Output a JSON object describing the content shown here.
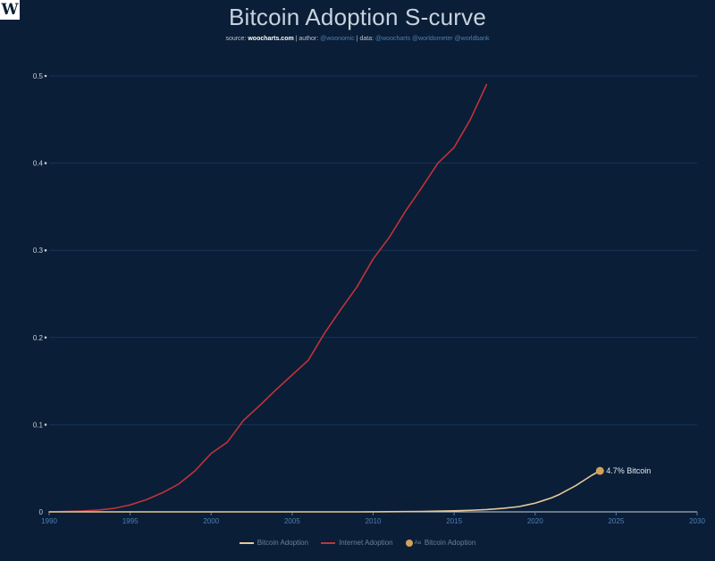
{
  "logo": {
    "text": "W"
  },
  "header": {
    "title": "Bitcoin Adoption S-curve",
    "source_prefix": "source: ",
    "source_site": "woocharts.com",
    "author_prefix": " | author: ",
    "author": "@woonomic",
    "data_prefix": " | data: ",
    "data_sources": "@woocharts @worldometer @worldbank"
  },
  "colors": {
    "background": "#0a1e37",
    "bitcoin": "#e6c89a",
    "internet": "#c0323a",
    "marker": "#d4a05a",
    "gridline": "#16335a"
  },
  "chart_data": {
    "type": "line",
    "title": "Bitcoin Adoption S-curve",
    "xlabel": "",
    "ylabel": "",
    "xlim": [
      1990,
      2030
    ],
    "ylim": [
      0,
      0.5
    ],
    "x_ticks": [
      1990,
      1995,
      2000,
      2005,
      2010,
      2015,
      2020,
      2025,
      2030
    ],
    "x_tick_labels": [
      "1990",
      "1995",
      "2000",
      "2005",
      "2010",
      "2015",
      "2020",
      "2025",
      "2030"
    ],
    "y_ticks": [
      0,
      0.1,
      0.2,
      0.3,
      0.4,
      0.5
    ],
    "y_tick_labels": [
      "0",
      "0.1",
      "0.2",
      "0.3",
      "0.4",
      "0.5"
    ],
    "grid": true,
    "legend_position": "bottom",
    "series": [
      {
        "name": "Bitcoin Adoption",
        "color": "#e6c89a",
        "x": [
          1990,
          2009,
          2010,
          2011,
          2012,
          2013,
          2014,
          2015,
          2016,
          2017,
          2018,
          2019,
          2019.5,
          2020,
          2020.5,
          2021,
          2021.5,
          2022,
          2022.5,
          2023,
          2023.5,
          2024
        ],
        "y": [
          0,
          0,
          0.0001,
          0.0002,
          0.0003,
          0.0005,
          0.0008,
          0.0012,
          0.0018,
          0.0026,
          0.004,
          0.006,
          0.008,
          0.01,
          0.013,
          0.016,
          0.02,
          0.025,
          0.03,
          0.036,
          0.042,
          0.047
        ]
      },
      {
        "name": "Internet Adoption",
        "color": "#c0323a",
        "x": [
          1990,
          1991,
          1992,
          1993,
          1994,
          1995,
          1996,
          1997,
          1998,
          1999,
          2000,
          2001,
          2002,
          2003,
          2004,
          2005,
          2006,
          2007,
          2008,
          2009,
          2010,
          2011,
          2012,
          2013,
          2014,
          2015,
          2016,
          2017
        ],
        "y": [
          0,
          0.0005,
          0.001,
          0.002,
          0.004,
          0.008,
          0.014,
          0.022,
          0.032,
          0.047,
          0.067,
          0.08,
          0.105,
          0.122,
          0.14,
          0.157,
          0.174,
          0.205,
          0.232,
          0.258,
          0.29,
          0.315,
          0.345,
          0.372,
          0.4,
          0.418,
          0.45,
          0.49
        ]
      }
    ],
    "end_marker": {
      "series": "Bitcoin Adoption",
      "x": 2024,
      "y": 0.047,
      "label": "4.7% Bitcoin"
    }
  },
  "legend": [
    {
      "label": "Bitcoin Adoption",
      "kind": "line",
      "color": "#e6c89a"
    },
    {
      "label": "Internet Adoption",
      "kind": "line",
      "color": "#c0323a"
    },
    {
      "label": "Bitcoin Adoption",
      "kind": "marker",
      "color": "#d4a05a",
      "badge": "Aa"
    }
  ]
}
